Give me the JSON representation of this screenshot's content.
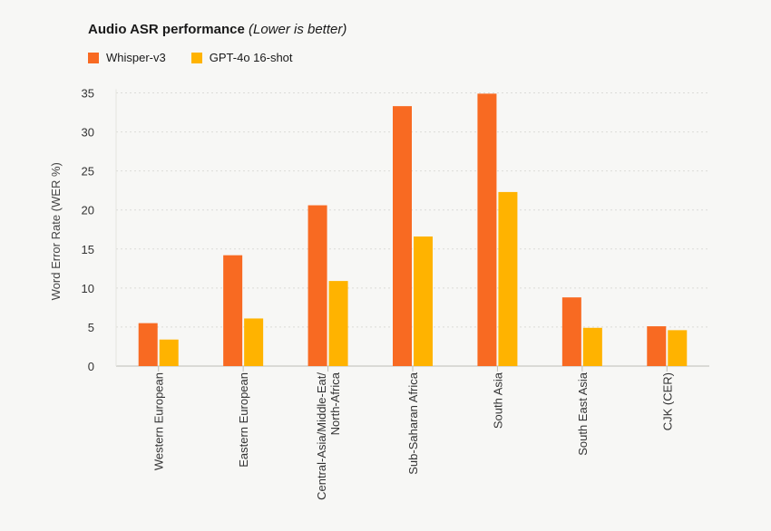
{
  "chart_data": {
    "type": "bar",
    "title": "Audio ASR performance",
    "subtitle": "(Lower is better)",
    "ylabel": "Word Error Rate (WER %)",
    "xlabel": "",
    "ylim": [
      0,
      35
    ],
    "yticks": [
      0,
      5,
      10,
      15,
      20,
      25,
      30,
      35
    ],
    "grid": true,
    "legend_position": "top-left",
    "categories": [
      [
        "Western European"
      ],
      [
        "Eastern European"
      ],
      [
        "Central-Asia/Middle-Eat/",
        "North-Africa"
      ],
      [
        "Sub-Saharan Africa"
      ],
      [
        "South Asia"
      ],
      [
        "South East Asia"
      ],
      [
        "CJK (CER)"
      ]
    ],
    "series": [
      {
        "name": "Whisper-v3",
        "color": "#f86a22",
        "values": [
          5.5,
          14.2,
          20.6,
          33.3,
          34.9,
          8.8,
          5.1
        ]
      },
      {
        "name": "GPT-4o 16-shot",
        "color": "#ffb300",
        "values": [
          3.4,
          6.1,
          10.9,
          16.6,
          22.3,
          4.9,
          4.6
        ]
      }
    ]
  }
}
